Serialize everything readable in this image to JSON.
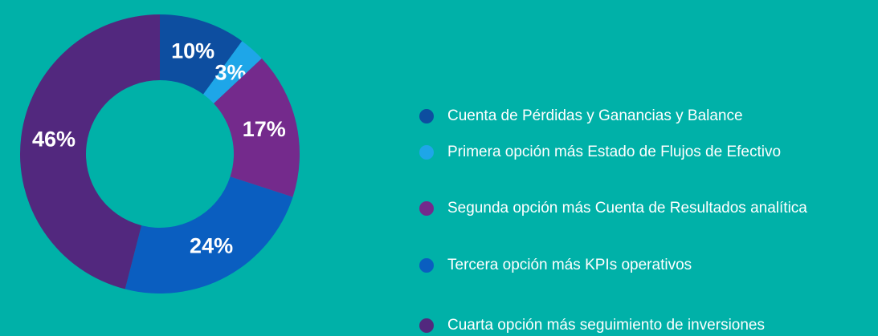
{
  "chart_data": {
    "type": "donut",
    "categories": [
      "Cuenta de Pérdidas y Ganancias y Balance",
      "Primera opción más Estado de Flujos de Efectivo",
      "Segunda opción más Cuenta de Resultados analítica",
      "Tercera opción más KPIs operativos",
      "Cuarta opción más seguimiento de inversiones"
    ],
    "values": [
      10,
      3,
      17,
      24,
      46
    ],
    "value_labels": [
      "10%",
      "3%",
      "17%",
      "24%",
      "46%"
    ],
    "colors": [
      "#0d4ea0",
      "#1ea6e8",
      "#742a8c",
      "#0a5ec0",
      "#52287e"
    ]
  }
}
